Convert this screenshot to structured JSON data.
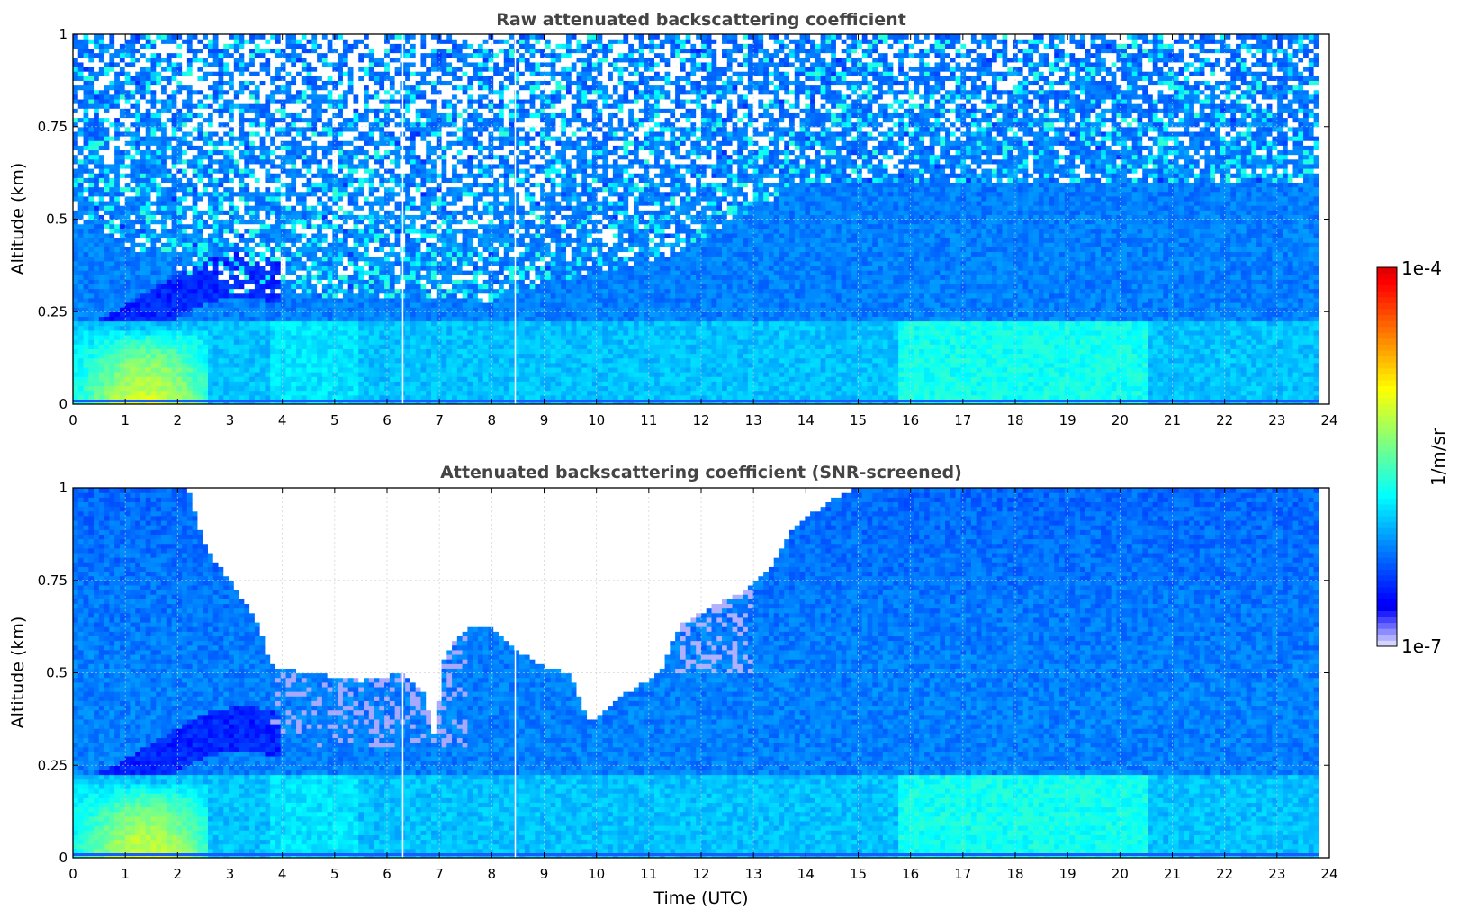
{
  "chart_data": [
    {
      "type": "heatmap",
      "title": "Raw attenuated backscattering coefficient",
      "xlabel": "",
      "ylabel": "Altitude (km)",
      "xlim": [
        0,
        24
      ],
      "ylim": [
        0,
        1
      ],
      "x_ticks": [
        "0",
        "1",
        "2",
        "3",
        "4",
        "5",
        "6",
        "7",
        "8",
        "9",
        "10",
        "11",
        "12",
        "13",
        "14",
        "15",
        "16",
        "17",
        "18",
        "19",
        "20",
        "21",
        "22",
        "23",
        "24"
      ],
      "y_ticks": [
        "0",
        "0.25",
        "0.5",
        "0.75",
        "1"
      ],
      "grid": true,
      "data_end_hour": 23.8,
      "gap_hours": [
        6.3,
        8.45
      ],
      "noise_floor_km": [
        [
          0,
          0.5
        ],
        [
          3,
          0.3
        ],
        [
          8,
          0.28
        ],
        [
          11.3,
          0.4
        ],
        [
          14,
          0.6
        ],
        [
          23.8,
          0.6
        ]
      ],
      "features": [
        {
          "name": "surface aerosol layer",
          "x_range": [
            0,
            2.6
          ],
          "top_km": 0.2,
          "peak_value": 1e-05,
          "peak_hour": 1.4
        },
        {
          "name": "boundary layer",
          "x_range": [
            15.8,
            20.5
          ],
          "top_km": 0.25,
          "peak_value": 3e-06
        }
      ]
    },
    {
      "type": "heatmap",
      "title": "Attenuated backscattering coefficient (SNR-screened)",
      "xlabel": "Time (UTC)",
      "ylabel": "Altitude (km)",
      "xlim": [
        0,
        24
      ],
      "ylim": [
        0,
        1
      ],
      "x_ticks": [
        "0",
        "1",
        "2",
        "3",
        "4",
        "5",
        "6",
        "7",
        "8",
        "9",
        "10",
        "11",
        "12",
        "13",
        "14",
        "15",
        "16",
        "17",
        "18",
        "19",
        "20",
        "21",
        "22",
        "23",
        "24"
      ],
      "y_ticks": [
        "0",
        "0.25",
        "0.5",
        "0.75",
        "1"
      ],
      "grid": true,
      "data_end_hour": 23.8,
      "gap_hours": [
        6.3,
        8.45
      ],
      "screened_boundary_km": [
        [
          2.2,
          1.0
        ],
        [
          2.5,
          0.85
        ],
        [
          3.0,
          0.75
        ],
        [
          3.5,
          0.65
        ],
        [
          3.8,
          0.52
        ],
        [
          4.5,
          0.5
        ],
        [
          5.5,
          0.48
        ],
        [
          6.3,
          0.5
        ],
        [
          6.7,
          0.45
        ],
        [
          6.9,
          0.33
        ],
        [
          7.1,
          0.55
        ],
        [
          7.5,
          0.62
        ],
        [
          8.0,
          0.63
        ],
        [
          8.5,
          0.56
        ],
        [
          9.0,
          0.52
        ],
        [
          9.5,
          0.5
        ],
        [
          9.9,
          0.36
        ],
        [
          10.2,
          0.4
        ],
        [
          10.6,
          0.45
        ],
        [
          11.2,
          0.5
        ],
        [
          11.6,
          0.63
        ],
        [
          12.2,
          0.68
        ],
        [
          12.8,
          0.72
        ],
        [
          13.3,
          0.78
        ],
        [
          13.8,
          0.9
        ],
        [
          14.5,
          0.97
        ],
        [
          15.0,
          1.0
        ]
      ],
      "features": [
        {
          "name": "surface aerosol layer",
          "x_range": [
            0,
            2.6
          ],
          "top_km": 0.2,
          "peak_value": 1e-05,
          "peak_hour": 1.4
        },
        {
          "name": "boundary layer",
          "x_range": [
            15.8,
            20.5
          ],
          "top_km": 0.25,
          "peak_value": 3e-06
        }
      ]
    }
  ],
  "colorbar": {
    "label": "1/m/sr",
    "max_label": "1e-4",
    "min_label": "1e-7",
    "scale": "log",
    "min": 1e-07,
    "max": 0.0001,
    "colormap": "jet",
    "colors": [
      "#e8e8ff",
      "#0000ff",
      "#0070ff",
      "#00d8ff",
      "#80ff80",
      "#ffff00",
      "#ff8000",
      "#ff0000",
      "#800000"
    ]
  }
}
